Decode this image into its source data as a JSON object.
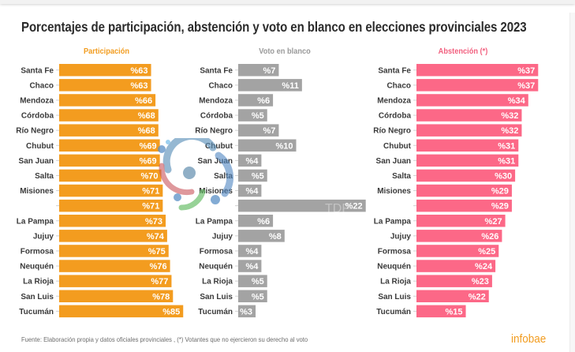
{
  "title": "Porcentajes de participación, abstención y voto en blanco en elecciones provinciales 2023",
  "footer": {
    "source": "Fuente: Elaboración propia y datos oficiales provinciales , (*) Votantes que no ejercieron su derecho al voto",
    "brand": "infobae"
  },
  "colors": {
    "participacion": "#f39c1f",
    "voto_en_blanco": "#a3a3a3",
    "abstencion": "#fc6887",
    "title_participacion": "#f29c1f",
    "title_voto_en_blanco": "#9a9a9a",
    "title_abstencion": "#f2607f"
  },
  "watermark": "TDF",
  "chart_data": [
    {
      "type": "bar",
      "orientation": "horizontal",
      "title": "Participación",
      "value_prefix": "%",
      "categories": [
        "Santa Fe",
        "Chaco",
        "Mendoza",
        "Córdoba",
        "Río Negro",
        "Chubut",
        "San Juan",
        "Salta",
        "Misiones",
        "",
        "La Pampa",
        "Jujuy",
        "Formosa",
        "Neuquén",
        "La Rioja",
        "San Luis",
        "Tucumán"
      ],
      "values": [
        63,
        63,
        66,
        68,
        68,
        69,
        69,
        70,
        71,
        71,
        73,
        74,
        75,
        76,
        77,
        78,
        85
      ],
      "xlim": [
        0,
        100
      ],
      "grid": false
    },
    {
      "type": "bar",
      "orientation": "horizontal",
      "title": "Voto en blanco",
      "value_prefix": "%",
      "categories": [
        "Santa Fe",
        "Chaco",
        "Mendoza",
        "Córdoba",
        "Río Negro",
        "Chubut",
        "San Juan",
        "Salta",
        "Misiones",
        "",
        "La Pampa",
        "Jujuy",
        "Formosa",
        "Neuquén",
        "La Rioja",
        "San Luis",
        "Tucumán"
      ],
      "values": [
        7,
        11,
        6,
        5,
        7,
        10,
        4,
        5,
        4,
        22,
        6,
        8,
        4,
        4,
        5,
        5,
        3
      ],
      "xlim": [
        0,
        25
      ],
      "grid": false
    },
    {
      "type": "bar",
      "orientation": "horizontal",
      "title": "Abstención (*)",
      "value_prefix": "%",
      "categories": [
        "Santa Fe",
        "Chaco",
        "Mendoza",
        "Córdoba",
        "Río Negro",
        "Chubut",
        "San Juan",
        "Salta",
        "Misiones",
        "",
        "La Pampa",
        "Jujuy",
        "Formosa",
        "Neuquén",
        "La Rioja",
        "San Luis",
        "Tucumán"
      ],
      "values": [
        37,
        37,
        34,
        32,
        32,
        31,
        31,
        30,
        29,
        29,
        27,
        26,
        25,
        24,
        23,
        22,
        15
      ],
      "xlim": [
        0,
        45
      ],
      "grid": false
    }
  ]
}
